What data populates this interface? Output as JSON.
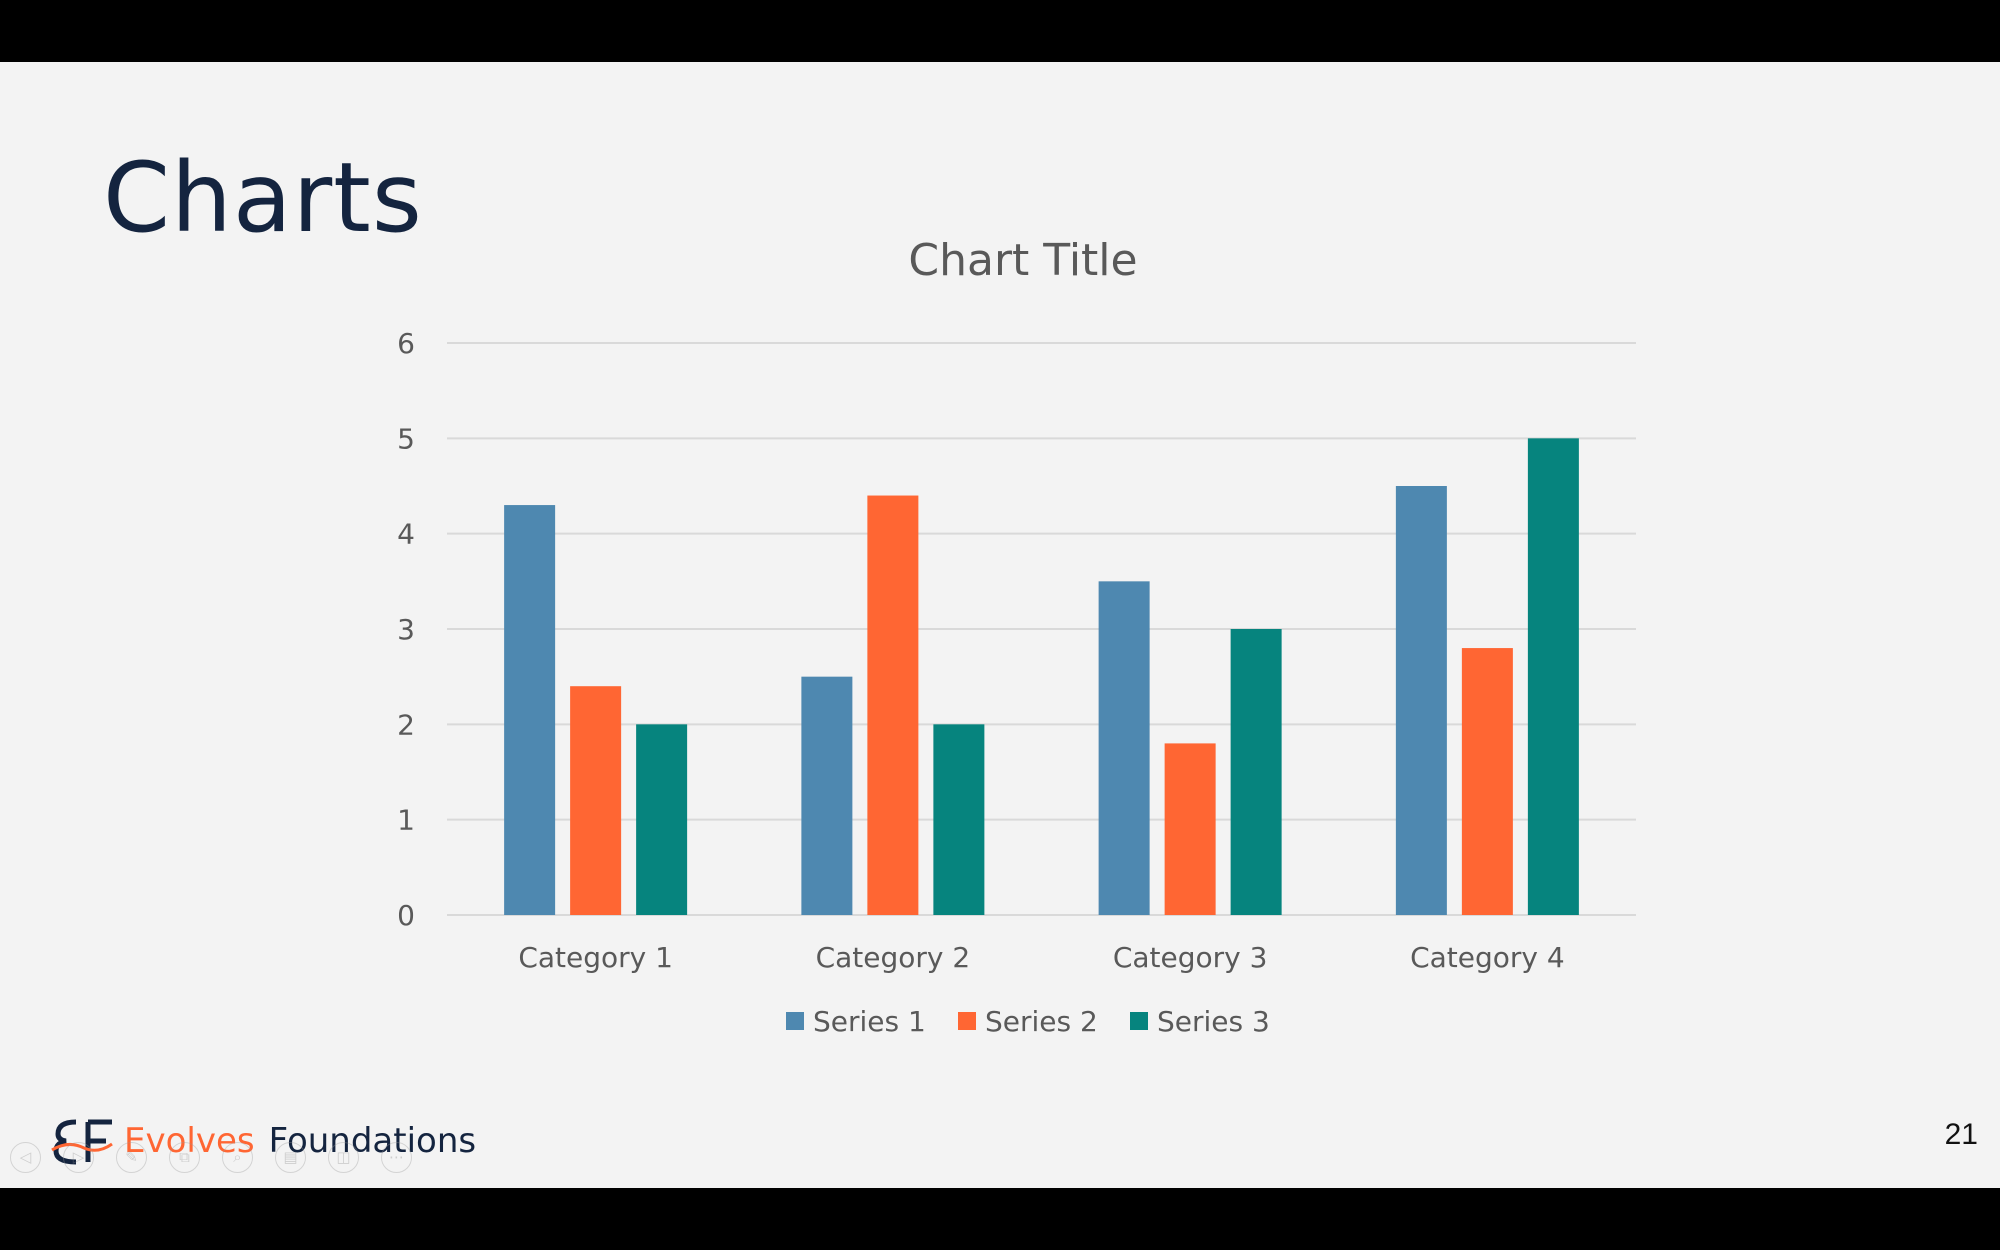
{
  "slide": {
    "title": "Charts",
    "page_number": "21"
  },
  "logo": {
    "mark": "EF",
    "word1": "Evolves",
    "word2": "Foundations"
  },
  "toolbar": {
    "tools": [
      {
        "icon": "previous-arrow-icon",
        "glyph": "◁"
      },
      {
        "icon": "next-arrow-icon",
        "glyph": "▷"
      },
      {
        "icon": "pen-icon",
        "glyph": "✎"
      },
      {
        "icon": "slides-grid-icon",
        "glyph": "⧉"
      },
      {
        "icon": "zoom-icon",
        "glyph": "⌕"
      },
      {
        "icon": "subtitles-icon",
        "glyph": "▤"
      },
      {
        "icon": "camera-icon",
        "glyph": "◫"
      },
      {
        "icon": "more-options-icon",
        "glyph": "⋯"
      }
    ]
  },
  "colors": {
    "series1": "#4e88b0",
    "series2": "#ff6633",
    "series3": "#06847e",
    "title": "#14243f",
    "text": "#595959",
    "grid": "#d9d9d9"
  },
  "chart_data": {
    "type": "bar",
    "title": "Chart Title",
    "xlabel": "",
    "ylabel": "",
    "categories": [
      "Category 1",
      "Category 2",
      "Category 3",
      "Category 4"
    ],
    "series": [
      {
        "name": "Series 1",
        "values": [
          4.3,
          2.5,
          3.5,
          4.5
        ]
      },
      {
        "name": "Series 2",
        "values": [
          2.4,
          4.4,
          1.8,
          2.8
        ]
      },
      {
        "name": "Series 3",
        "values": [
          2,
          2,
          3,
          5
        ]
      }
    ],
    "ylim": [
      0,
      6
    ],
    "yticks": [
      "0",
      "1",
      "2",
      "3",
      "4",
      "5",
      "6"
    ],
    "grid": true,
    "legend": "bottom"
  }
}
